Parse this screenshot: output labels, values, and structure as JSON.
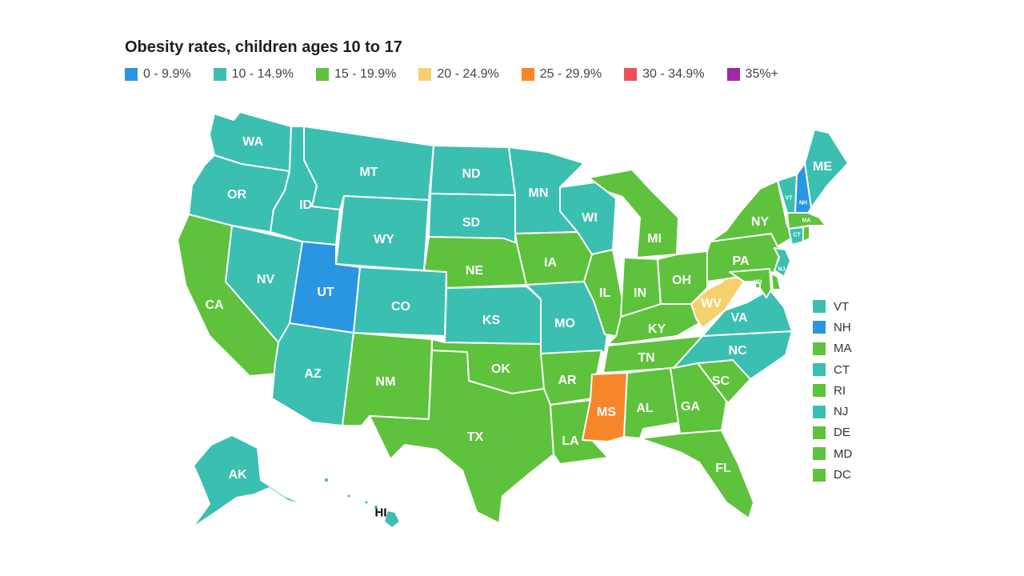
{
  "title": "Obesity rates, children ages 10 to 17",
  "legend": [
    {
      "label": "0 - 9.9%",
      "color": "#2a96e2"
    },
    {
      "label": "10 - 14.9%",
      "color": "#3bbfb0"
    },
    {
      "label": "15 - 19.9%",
      "color": "#5ec23c"
    },
    {
      "label": "20 - 24.9%",
      "color": "#f6d06a"
    },
    {
      "label": "25 - 29.9%",
      "color": "#f7862a"
    },
    {
      "label": "30 - 34.9%",
      "color": "#ef4e58"
    },
    {
      "label": "35%+",
      "color": "#9c2aa6"
    }
  ],
  "states": {
    "WA": {
      "label": "WA",
      "color": "#3bbfb0"
    },
    "OR": {
      "label": "OR",
      "color": "#3bbfb0"
    },
    "CA": {
      "label": "CA",
      "color": "#5ec23c"
    },
    "NV": {
      "label": "NV",
      "color": "#3bbfb0"
    },
    "ID": {
      "label": "ID",
      "color": "#3bbfb0"
    },
    "MT": {
      "label": "MT",
      "color": "#3bbfb0"
    },
    "WY": {
      "label": "WY",
      "color": "#3bbfb0"
    },
    "UT": {
      "label": "UT",
      "color": "#2a96e2"
    },
    "AZ": {
      "label": "AZ",
      "color": "#3bbfb0"
    },
    "CO": {
      "label": "CO",
      "color": "#3bbfb0"
    },
    "NM": {
      "label": "NM",
      "color": "#5ec23c"
    },
    "ND": {
      "label": "ND",
      "color": "#3bbfb0"
    },
    "SD": {
      "label": "SD",
      "color": "#3bbfb0"
    },
    "NE": {
      "label": "NE",
      "color": "#5ec23c"
    },
    "KS": {
      "label": "KS",
      "color": "#3bbfb0"
    },
    "OK": {
      "label": "OK",
      "color": "#5ec23c"
    },
    "TX": {
      "label": "TX",
      "color": "#5ec23c"
    },
    "MN": {
      "label": "MN",
      "color": "#3bbfb0"
    },
    "IA": {
      "label": "IA",
      "color": "#5ec23c"
    },
    "MO": {
      "label": "MO",
      "color": "#3bbfb0"
    },
    "AR": {
      "label": "AR",
      "color": "#5ec23c"
    },
    "LA": {
      "label": "LA",
      "color": "#5ec23c"
    },
    "WI": {
      "label": "WI",
      "color": "#3bbfb0"
    },
    "IL": {
      "label": "IL",
      "color": "#5ec23c"
    },
    "MI": {
      "label": "MI",
      "color": "#5ec23c"
    },
    "IN": {
      "label": "IN",
      "color": "#5ec23c"
    },
    "OH": {
      "label": "OH",
      "color": "#5ec23c"
    },
    "KY": {
      "label": "KY",
      "color": "#5ec23c"
    },
    "TN": {
      "label": "TN",
      "color": "#5ec23c"
    },
    "MS": {
      "label": "MS",
      "color": "#f7862a"
    },
    "AL": {
      "label": "AL",
      "color": "#5ec23c"
    },
    "GA": {
      "label": "GA",
      "color": "#5ec23c"
    },
    "FL": {
      "label": "FL",
      "color": "#5ec23c"
    },
    "SC": {
      "label": "SC",
      "color": "#5ec23c"
    },
    "NC": {
      "label": "NC",
      "color": "#3bbfb0"
    },
    "VA": {
      "label": "VA",
      "color": "#3bbfb0"
    },
    "WV": {
      "label": "WV",
      "color": "#f6d06a"
    },
    "PA": {
      "label": "PA",
      "color": "#5ec23c"
    },
    "NY": {
      "label": "NY",
      "color": "#5ec23c"
    },
    "ME": {
      "label": "ME",
      "color": "#3bbfb0"
    },
    "VT": {
      "label": "VT",
      "color": "#3bbfb0"
    },
    "NH": {
      "label": "NH",
      "color": "#2a96e2"
    },
    "MA": {
      "label": "MA",
      "color": "#5ec23c"
    },
    "CT": {
      "label": "CT",
      "color": "#3bbfb0"
    },
    "RI": {
      "label": "RI",
      "color": "#5ec23c"
    },
    "NJ": {
      "label": "NJ",
      "color": "#3bbfb0"
    },
    "DE": {
      "label": "DE",
      "color": "#5ec23c"
    },
    "MD": {
      "label": "MD",
      "color": "#5ec23c"
    },
    "DC": {
      "label": "DC",
      "color": "#5ec23c"
    },
    "AK": {
      "label": "AK",
      "color": "#3bbfb0"
    },
    "HI": {
      "label": "HI",
      "color": "#3bbfb0"
    }
  },
  "side_legend": [
    {
      "label": "VT",
      "color": "#3bbfb0"
    },
    {
      "label": "NH",
      "color": "#2a96e2"
    },
    {
      "label": "MA",
      "color": "#5ec23c"
    },
    {
      "label": "CT",
      "color": "#3bbfb0"
    },
    {
      "label": "RI",
      "color": "#5ec23c"
    },
    {
      "label": "NJ",
      "color": "#3bbfb0"
    },
    {
      "label": "DE",
      "color": "#5ec23c"
    },
    {
      "label": "MD",
      "color": "#5ec23c"
    },
    {
      "label": "DC",
      "color": "#5ec23c"
    }
  ]
}
